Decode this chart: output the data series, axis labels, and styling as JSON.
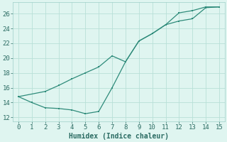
{
  "line1_x": [
    0,
    1,
    2,
    3,
    4,
    5,
    6,
    7,
    8,
    9,
    10,
    11,
    12,
    13,
    14,
    15
  ],
  "line1_y": [
    14.8,
    14.0,
    13.3,
    13.2,
    13.0,
    12.5,
    12.8,
    16.0,
    19.5,
    22.3,
    23.3,
    24.5,
    26.1,
    26.4,
    26.9,
    26.9
  ],
  "line2_x": [
    0,
    2,
    3,
    4,
    5,
    6,
    7,
    8,
    9,
    10,
    11,
    12,
    13,
    14,
    15
  ],
  "line2_y": [
    14.8,
    15.5,
    16.3,
    17.2,
    18.0,
    18.8,
    20.3,
    19.5,
    22.3,
    23.3,
    24.5,
    25.0,
    25.3,
    26.8,
    26.9
  ],
  "line_color": "#2e8b7a",
  "bg_color": "#dff5f0",
  "grid_color": "#b8e0d8",
  "spine_color": "#9ecfc8",
  "xlabel": "Humidex (Indice chaleur)",
  "xlim": [
    -0.4,
    15.4
  ],
  "ylim": [
    11.5,
    27.5
  ],
  "yticks": [
    12,
    14,
    16,
    18,
    20,
    22,
    24,
    26
  ],
  "xticks": [
    0,
    1,
    2,
    3,
    4,
    5,
    6,
    7,
    8,
    9,
    10,
    11,
    12,
    13,
    14,
    15
  ],
  "font_color": "#2a6b62",
  "xlabel_fontsize": 7,
  "tick_fontsize": 6.5
}
